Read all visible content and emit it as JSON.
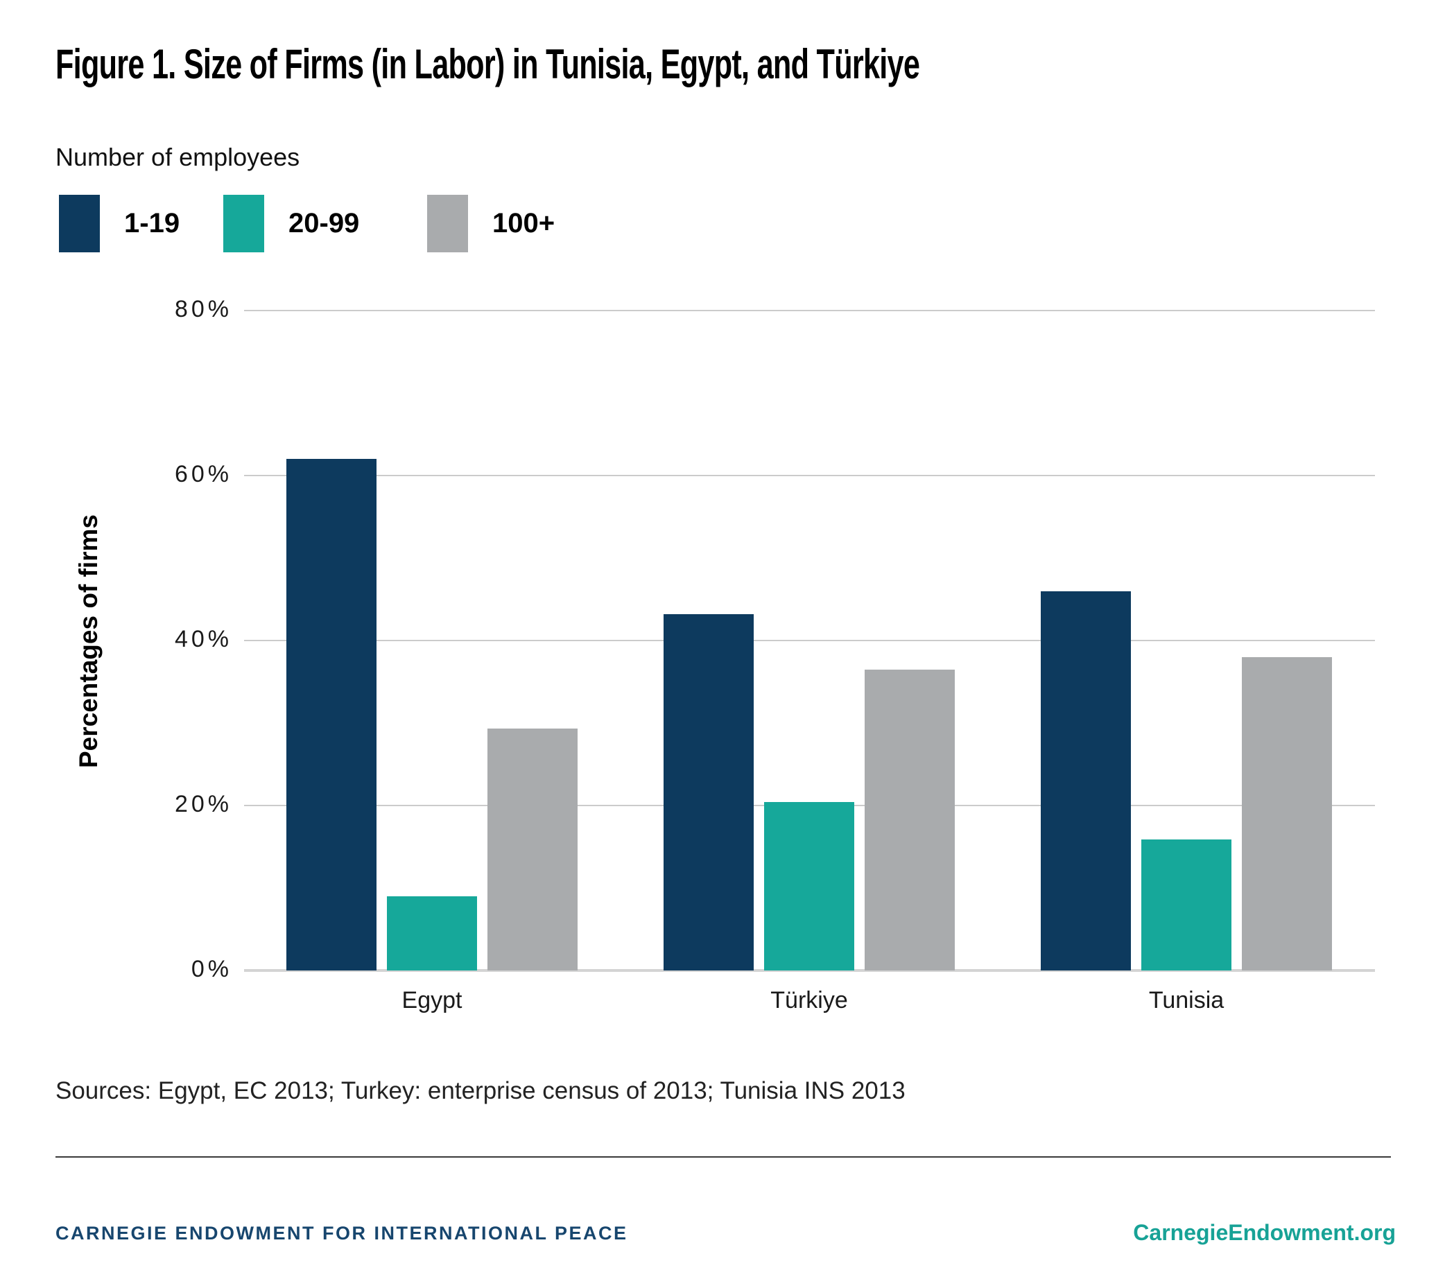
{
  "title": "Figure 1. Size of Firms (in Labor) in Tunisia, Egypt, and Türkiye",
  "legend": {
    "title": "Number of employees",
    "items": [
      {
        "label": "1-19",
        "color": "#0d3a5e"
      },
      {
        "label": "20-99",
        "color": "#16a89a"
      },
      {
        "label": "100+",
        "color": "#a9abad"
      }
    ]
  },
  "chart_data": {
    "type": "bar",
    "categories": [
      "Egypt",
      "Türkiye",
      "Tunisia"
    ],
    "series": [
      {
        "name": "1-19",
        "color": "#0d3a5e",
        "values": [
          62.0,
          43.2,
          46.0
        ]
      },
      {
        "name": "20-99",
        "color": "#16a89a",
        "values": [
          9.0,
          20.4,
          15.9
        ]
      },
      {
        "name": "100+",
        "color": "#a9abad",
        "values": [
          29.3,
          36.5,
          38.0
        ]
      }
    ],
    "ylabel": "Percentages of firms",
    "ylim": [
      0,
      80
    ],
    "yticks": [
      0,
      20,
      40,
      60,
      80
    ],
    "ytick_labels": [
      "0%",
      "20%",
      "40%",
      "60%",
      "80%"
    ],
    "grid": true,
    "legend_position": "top-left"
  },
  "source_note": "Sources: Egypt, EC 2013; Turkey: enterprise census of 2013; Tunisia INS 2013",
  "footer": {
    "left": "CARNEGIE ENDOWMENT FOR INTERNATIONAL PEACE",
    "left_color": "#17466e",
    "right": "CarnegieEndowment.org",
    "right_color": "#17a296"
  }
}
